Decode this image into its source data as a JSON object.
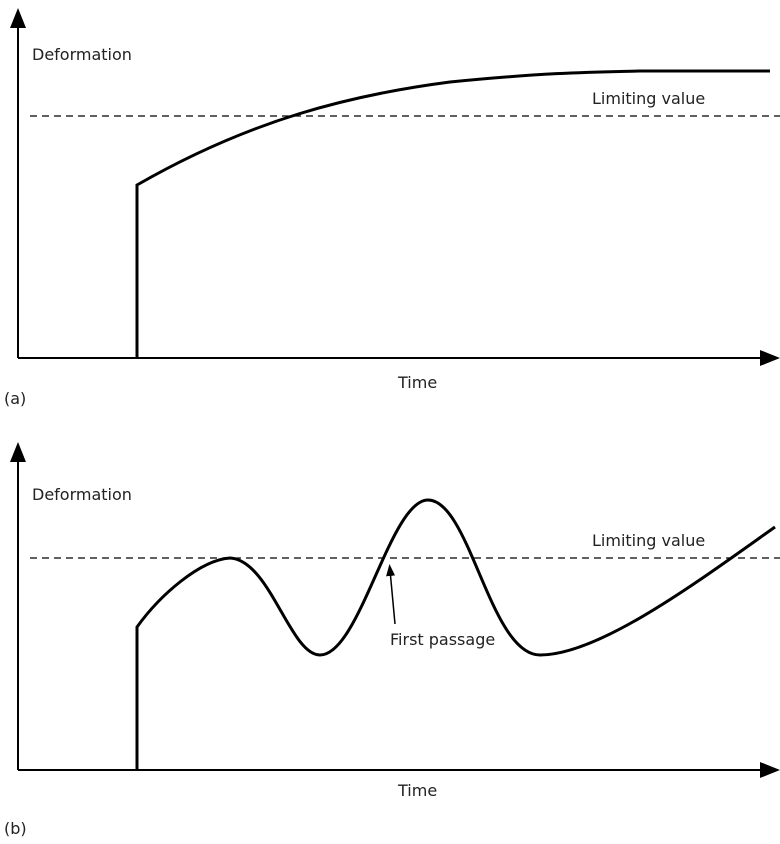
{
  "panels": [
    {
      "label": "(a)",
      "y_axis_label": "Deformation",
      "x_axis_label": "Time",
      "limit_label": "Limiting value"
    },
    {
      "label": "(b)",
      "y_axis_label": "Deformation",
      "x_axis_label": "Time",
      "limit_label": "Limiting value",
      "annotation": "First passage"
    }
  ]
}
